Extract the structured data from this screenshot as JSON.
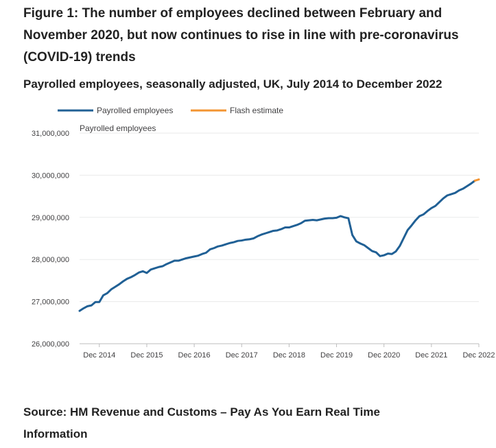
{
  "figure": {
    "title": "Figure 1: The number of employees declined between February and November 2020, but now continues to rise in line with pre-coronavirus (COVID-19) trends",
    "subtitle": "Payrolled employees, seasonally adjusted, UK, July 2014 to December 2022",
    "source": "Source: HM Revenue and Customs – Pay As You Earn Real Time Information"
  },
  "chart_data": {
    "type": "line",
    "title": "Payrolled employees, seasonally adjusted, UK, July 2014 to December 2022",
    "xlabel": "",
    "ylabel": "Payrolled employees",
    "ylim": [
      26000000,
      31000000
    ],
    "xlim": [
      "2014-07",
      "2022-12"
    ],
    "y_ticks": [
      26000000,
      27000000,
      28000000,
      29000000,
      30000000,
      31000000
    ],
    "y_tick_labels": [
      "26,000,000",
      "27,000,000",
      "28,000,000",
      "29,000,000",
      "30,000,000",
      "31,000,000"
    ],
    "x_ticks": [
      "2014-12",
      "2015-12",
      "2016-12",
      "2017-12",
      "2018-12",
      "2019-12",
      "2020-12",
      "2021-12",
      "2022-12"
    ],
    "x_tick_labels": [
      "Dec 2014",
      "Dec 2015",
      "Dec 2016",
      "Dec 2017",
      "Dec 2018",
      "Dec 2019",
      "Dec 2020",
      "Dec 2021",
      "Dec 2022"
    ],
    "grid": true,
    "legend_position": "top-left",
    "series": [
      {
        "name": "Payrolled employees",
        "color": "#206095",
        "points": [
          [
            "2014-07",
            26780000
          ],
          [
            "2014-08",
            26840000
          ],
          [
            "2014-09",
            26890000
          ],
          [
            "2014-10",
            26910000
          ],
          [
            "2014-11",
            26990000
          ],
          [
            "2014-12",
            26990000
          ],
          [
            "2015-01",
            27150000
          ],
          [
            "2015-02",
            27200000
          ],
          [
            "2015-03",
            27290000
          ],
          [
            "2015-04",
            27350000
          ],
          [
            "2015-05",
            27410000
          ],
          [
            "2015-06",
            27480000
          ],
          [
            "2015-07",
            27540000
          ],
          [
            "2015-08",
            27580000
          ],
          [
            "2015-09",
            27630000
          ],
          [
            "2015-10",
            27690000
          ],
          [
            "2015-11",
            27720000
          ],
          [
            "2015-12",
            27680000
          ],
          [
            "2016-01",
            27760000
          ],
          [
            "2016-02",
            27790000
          ],
          [
            "2016-03",
            27820000
          ],
          [
            "2016-04",
            27840000
          ],
          [
            "2016-05",
            27890000
          ],
          [
            "2016-06",
            27930000
          ],
          [
            "2016-07",
            27970000
          ],
          [
            "2016-08",
            27970000
          ],
          [
            "2016-09",
            28000000
          ],
          [
            "2016-10",
            28030000
          ],
          [
            "2016-11",
            28050000
          ],
          [
            "2016-12",
            28070000
          ],
          [
            "2017-01",
            28090000
          ],
          [
            "2017-02",
            28130000
          ],
          [
            "2017-03",
            28160000
          ],
          [
            "2017-04",
            28240000
          ],
          [
            "2017-05",
            28270000
          ],
          [
            "2017-06",
            28310000
          ],
          [
            "2017-07",
            28330000
          ],
          [
            "2017-08",
            28360000
          ],
          [
            "2017-09",
            28390000
          ],
          [
            "2017-10",
            28410000
          ],
          [
            "2017-11",
            28440000
          ],
          [
            "2017-12",
            28450000
          ],
          [
            "2018-01",
            28470000
          ],
          [
            "2018-02",
            28480000
          ],
          [
            "2018-03",
            28500000
          ],
          [
            "2018-04",
            28550000
          ],
          [
            "2018-05",
            28590000
          ],
          [
            "2018-06",
            28620000
          ],
          [
            "2018-07",
            28650000
          ],
          [
            "2018-08",
            28680000
          ],
          [
            "2018-09",
            28690000
          ],
          [
            "2018-10",
            28720000
          ],
          [
            "2018-11",
            28760000
          ],
          [
            "2018-12",
            28760000
          ],
          [
            "2019-01",
            28790000
          ],
          [
            "2019-02",
            28820000
          ],
          [
            "2019-03",
            28860000
          ],
          [
            "2019-04",
            28920000
          ],
          [
            "2019-05",
            28930000
          ],
          [
            "2019-06",
            28940000
          ],
          [
            "2019-07",
            28930000
          ],
          [
            "2019-08",
            28950000
          ],
          [
            "2019-09",
            28970000
          ],
          [
            "2019-10",
            28980000
          ],
          [
            "2019-11",
            28980000
          ],
          [
            "2019-12",
            28990000
          ],
          [
            "2020-01",
            29030000
          ],
          [
            "2020-02",
            29000000
          ],
          [
            "2020-03",
            28980000
          ],
          [
            "2020-04",
            28580000
          ],
          [
            "2020-05",
            28430000
          ],
          [
            "2020-06",
            28380000
          ],
          [
            "2020-07",
            28340000
          ],
          [
            "2020-08",
            28270000
          ],
          [
            "2020-09",
            28200000
          ],
          [
            "2020-10",
            28170000
          ],
          [
            "2020-11",
            28080000
          ],
          [
            "2020-12",
            28100000
          ],
          [
            "2021-01",
            28140000
          ],
          [
            "2021-02",
            28130000
          ],
          [
            "2021-03",
            28190000
          ],
          [
            "2021-04",
            28320000
          ],
          [
            "2021-05",
            28510000
          ],
          [
            "2021-06",
            28700000
          ],
          [
            "2021-07",
            28810000
          ],
          [
            "2021-08",
            28930000
          ],
          [
            "2021-09",
            29030000
          ],
          [
            "2021-10",
            29070000
          ],
          [
            "2021-11",
            29150000
          ],
          [
            "2021-12",
            29220000
          ],
          [
            "2022-01",
            29270000
          ],
          [
            "2022-02",
            29360000
          ],
          [
            "2022-03",
            29450000
          ],
          [
            "2022-04",
            29520000
          ],
          [
            "2022-05",
            29550000
          ],
          [
            "2022-06",
            29580000
          ],
          [
            "2022-07",
            29640000
          ],
          [
            "2022-08",
            29680000
          ],
          [
            "2022-09",
            29740000
          ],
          [
            "2022-10",
            29800000
          ],
          [
            "2022-11",
            29870000
          ]
        ]
      },
      {
        "name": "Flash estimate",
        "color": "#f39431",
        "points": [
          [
            "2022-11",
            29870000
          ],
          [
            "2022-12",
            29900000
          ]
        ]
      }
    ]
  }
}
